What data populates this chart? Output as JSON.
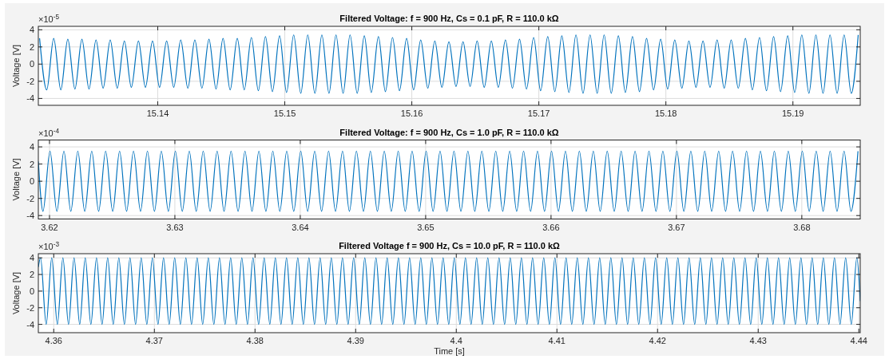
{
  "chart_data": [
    {
      "type": "line",
      "title": "Filtered Voltage: f = 900 Hz, Cs = 0.1 pF, R = 110.0 kΩ",
      "ylabel": "Voltage [V]",
      "annotations": [
        "×10$^{-5}$"
      ],
      "xlim": [
        15.1306,
        15.1953
      ],
      "ylim": [
        -4.8,
        4.4
      ],
      "xticks": [
        15.14,
        15.15,
        15.16,
        15.17,
        15.18,
        15.19
      ],
      "yticks": [
        -4,
        -2,
        0,
        2,
        4
      ],
      "grid": true,
      "x": [
        15.1307,
        15.13126,
        15.13181,
        15.13237,
        15.13292,
        15.13348,
        15.13403,
        15.13459,
        15.13514,
        15.1357,
        15.13626,
        15.13681,
        15.13737,
        15.13792,
        15.13848,
        15.13903,
        15.13959,
        15.14014,
        15.1407,
        15.14126,
        15.14181,
        15.14237,
        15.14292,
        15.14348,
        15.14403,
        15.14459,
        15.14514,
        15.1457,
        15.14626,
        15.14681,
        15.14737,
        15.14792,
        15.14848,
        15.14903,
        15.14959,
        15.15014,
        15.1507,
        15.15126,
        15.15181,
        15.15237,
        15.15292,
        15.15348,
        15.15403,
        15.15459,
        15.15514,
        15.1557,
        15.15626,
        15.15681,
        15.15737,
        15.15792,
        15.15848,
        15.15903,
        15.15959,
        15.16014,
        15.1607,
        15.16126,
        15.16181,
        15.16237,
        15.16292,
        15.16348,
        15.16403,
        15.16459,
        15.16514,
        15.1657,
        15.16626,
        15.16681,
        15.16737,
        15.16792,
        15.16848,
        15.16903,
        15.16959,
        15.17014,
        15.1707,
        15.17126,
        15.17181,
        15.17237,
        15.17292,
        15.17348,
        15.17403,
        15.17459,
        15.17514,
        15.1757,
        15.17626,
        15.17681,
        15.17737,
        15.17792,
        15.17848,
        15.17903,
        15.17959,
        15.18014,
        15.1807,
        15.18126,
        15.18181,
        15.18237,
        15.18292,
        15.18348,
        15.18403,
        15.18459,
        15.18514,
        15.1857,
        15.18626,
        15.18681,
        15.18737,
        15.18792,
        15.18848,
        15.18903,
        15.18959,
        15.19014,
        15.1907,
        15.19126,
        15.19181,
        15.19237,
        15.19292,
        15.19348,
        15.19403,
        15.19459,
        15.19514
      ],
      "series": [
        {
          "color": "#0072bd",
          "values": [
            3.0,
            -3.0,
            3.0,
            -3.0,
            2.9,
            -2.9,
            2.9,
            -2.9,
            2.8,
            -2.8,
            2.8,
            -2.8,
            2.7,
            -2.7,
            2.7,
            -2.7,
            2.7,
            -2.7,
            2.7,
            -2.7,
            2.8,
            -2.8,
            2.8,
            -2.8,
            2.9,
            -2.9,
            3.0,
            -3.0,
            3.0,
            -3.0,
            3.1,
            -3.1,
            3.2,
            -3.2,
            3.3,
            -3.3,
            3.4,
            -3.4,
            3.4,
            -3.4,
            3.4,
            -3.4,
            3.4,
            -3.4,
            3.4,
            -3.4,
            3.3,
            -3.3,
            3.2,
            -3.2,
            3.1,
            -3.1,
            3.0,
            -3.0,
            2.8,
            -2.8,
            2.7,
            -2.7,
            2.6,
            -2.6,
            2.6,
            -2.6,
            2.7,
            -2.7,
            2.7,
            -2.7,
            2.8,
            -2.8,
            2.9,
            -2.9,
            3.1,
            -3.1,
            3.2,
            -3.2,
            3.3,
            -3.3,
            3.4,
            -3.4,
            3.4,
            -3.4,
            3.4,
            -3.4,
            3.3,
            -3.3,
            3.2,
            -3.2,
            3.0,
            -3.0,
            2.9,
            -2.9,
            2.8,
            -2.8,
            2.7,
            -2.7,
            2.7,
            -2.7,
            2.8,
            -2.8,
            2.8,
            -2.8,
            3.0,
            -3.0,
            3.1,
            -3.1,
            3.2,
            -3.2,
            3.3,
            -3.3,
            3.4,
            -3.4,
            3.4,
            -3.4,
            3.4,
            -3.4,
            3.4,
            -3.4,
            3.4
          ]
        }
      ]
    },
    {
      "type": "line",
      "title": "Filtered Voltage: f = 900 Hz, Cs = 1.0 pF, R = 110.0 kΩ",
      "ylabel": "Voltage [V]",
      "annotations": [
        "×10$^{-4}$"
      ],
      "xlim": [
        3.61911,
        3.68466
      ],
      "ylim": [
        -4.4,
        4.8
      ],
      "xticks": [
        3.62,
        3.63,
        3.64,
        3.65,
        3.66,
        3.67,
        3.68
      ],
      "yticks": [
        -4,
        -2,
        0,
        2,
        4
      ],
      "grid": true,
      "x": [
        3.61911,
        3.61948,
        3.62004,
        3.62059,
        3.62115,
        3.6217,
        3.62226,
        3.62281,
        3.62337,
        3.62392,
        3.62448,
        3.62504,
        3.62559,
        3.62615,
        3.6267,
        3.62726,
        3.62781,
        3.62837,
        3.62892,
        3.62948,
        3.63004,
        3.63059,
        3.63115,
        3.6317,
        3.63226,
        3.63281,
        3.63337,
        3.63392,
        3.63448,
        3.63504,
        3.63559,
        3.63615,
        3.6367,
        3.63726,
        3.63781,
        3.63837,
        3.63892,
        3.63948,
        3.64004,
        3.64059,
        3.64115,
        3.6417,
        3.64226,
        3.64281,
        3.64337,
        3.64392,
        3.64448,
        3.64504,
        3.64559,
        3.64615,
        3.6467,
        3.64726,
        3.64781,
        3.64837,
        3.64892,
        3.64948,
        3.65004,
        3.65059,
        3.65115,
        3.6517,
        3.65226,
        3.65281,
        3.65337,
        3.65392,
        3.65448,
        3.65504,
        3.65559,
        3.65615,
        3.6567,
        3.65726,
        3.65781,
        3.65837,
        3.65892,
        3.65948,
        3.66004,
        3.66059,
        3.66115,
        3.6617,
        3.66226,
        3.66281,
        3.66337,
        3.66392,
        3.66448,
        3.66504,
        3.66559,
        3.66615,
        3.6667,
        3.66726,
        3.66781,
        3.66837,
        3.66892,
        3.66948,
        3.67004,
        3.67059,
        3.67115,
        3.6717,
        3.67226,
        3.67281,
        3.67337,
        3.67392,
        3.67448,
        3.67504,
        3.67559,
        3.67615,
        3.6767,
        3.67726,
        3.67781,
        3.67837,
        3.67892,
        3.67948,
        3.68004,
        3.68059,
        3.68115,
        3.6817,
        3.68226,
        3.68281,
        3.68337,
        3.68392,
        3.68448
      ],
      "series": [
        {
          "color": "#0072bd",
          "values": [
            2.3,
            -3.5,
            3.5,
            -3.5,
            3.5,
            -3.5,
            3.5,
            -3.5,
            3.5,
            -3.5,
            3.5,
            -3.5,
            3.5,
            -3.5,
            3.5,
            -3.5,
            3.5,
            -3.5,
            3.5,
            -3.5,
            3.5,
            -3.5,
            3.5,
            -3.5,
            3.5,
            -3.5,
            3.5,
            -3.5,
            3.5,
            -3.5,
            3.5,
            -3.5,
            3.5,
            -3.5,
            3.5,
            -3.5,
            3.5,
            -3.5,
            3.5,
            -3.5,
            3.5,
            -3.5,
            3.5,
            -3.5,
            3.5,
            -3.5,
            3.5,
            -3.5,
            3.5,
            -3.5,
            3.5,
            -3.5,
            3.5,
            -3.5,
            3.5,
            -3.5,
            3.5,
            -3.5,
            3.5,
            -3.5,
            3.5,
            -3.5,
            3.5,
            -3.5,
            3.5,
            -3.5,
            3.5,
            -3.5,
            3.5,
            -3.5,
            3.5,
            -3.5,
            3.5,
            -3.5,
            3.5,
            -3.5,
            3.5,
            -3.5,
            3.5,
            -3.5,
            3.5,
            -3.5,
            3.5,
            -3.5,
            3.5,
            -3.5,
            3.5,
            -3.5,
            3.5,
            -3.5,
            3.5,
            -3.5,
            3.5,
            -3.5,
            3.5,
            -3.5,
            3.5,
            -3.5,
            3.5,
            -3.5,
            3.5,
            -3.5,
            3.5,
            -3.5,
            3.5,
            -3.5,
            3.5,
            -3.5,
            3.5,
            -3.5,
            3.5,
            -3.5,
            3.5,
            -3.5,
            3.5,
            -3.5,
            3.5,
            -3.5,
            3.5
          ]
        }
      ]
    },
    {
      "type": "line",
      "title": "Filtered Voltage f = 900 Hz, Cs = 10.0 pF, R = 110.0 kΩ",
      "xlabel": "Time [s]",
      "ylabel": "Voltage [V]",
      "annotations": [
        "×10$^{-3}$"
      ],
      "xlim": [
        4.35847,
        4.44014
      ],
      "ylim": [
        -5,
        4.5
      ],
      "xticks": [
        4.36,
        4.37,
        4.38,
        4.39,
        4.4,
        4.41,
        4.42,
        4.43,
        4.44
      ],
      "yticks": [
        -4,
        -2,
        0,
        2,
        4
      ],
      "grid": true,
      "x": [
        4.35847,
        4.35869,
        4.35925,
        4.3598,
        4.36036,
        4.36091,
        4.36147,
        4.36202,
        4.36258,
        4.36313,
        4.36369,
        4.36425,
        4.3648,
        4.36536,
        4.36591,
        4.36647,
        4.36702,
        4.36758,
        4.36813,
        4.36869,
        4.36925,
        4.3698,
        4.37036,
        4.37091,
        4.37147,
        4.37202,
        4.37258,
        4.37313,
        4.37369,
        4.37425,
        4.3748,
        4.37536,
        4.37591,
        4.37647,
        4.37702,
        4.37758,
        4.37813,
        4.37869,
        4.37925,
        4.3798,
        4.38036,
        4.38091,
        4.38147,
        4.38202,
        4.38258,
        4.38313,
        4.38369,
        4.38425,
        4.3848,
        4.38536,
        4.38591,
        4.38647,
        4.38702,
        4.38758,
        4.38813,
        4.38869,
        4.38925,
        4.3898,
        4.39036,
        4.39091,
        4.39147,
        4.39202,
        4.39258,
        4.39313,
        4.39369,
        4.39425,
        4.3948,
        4.39536,
        4.39591,
        4.39647,
        4.39702,
        4.39758,
        4.39813,
        4.39869,
        4.39925,
        4.3998,
        4.40036,
        4.40091,
        4.40147,
        4.40202,
        4.40258,
        4.40313,
        4.40369,
        4.40425,
        4.4048,
        4.40536,
        4.40591,
        4.40647,
        4.40702,
        4.40758,
        4.40813,
        4.40869,
        4.40925,
        4.4098,
        4.41036,
        4.41091,
        4.41147,
        4.41202,
        4.41258,
        4.41313,
        4.41369,
        4.41425,
        4.4148,
        4.41536,
        4.41591,
        4.41647,
        4.41702,
        4.41758,
        4.41813,
        4.41869,
        4.41925,
        4.4198,
        4.42036,
        4.42091,
        4.42147,
        4.42202,
        4.42258,
        4.42313,
        4.42369,
        4.42425,
        4.4248,
        4.42536,
        4.42591,
        4.42647,
        4.42702,
        4.42758,
        4.42813,
        4.42869,
        4.42925,
        4.4298,
        4.43036,
        4.43091,
        4.43147,
        4.43202,
        4.43258,
        4.43313,
        4.43369,
        4.43425,
        4.4348,
        4.43536,
        4.43591,
        4.43647,
        4.43702,
        4.43758,
        4.43813,
        4.43869,
        4.43925,
        4.4398,
        4.44014
      ],
      "series": [
        {
          "color": "#0072bd",
          "values": [
            2.9,
            4,
            -4,
            4,
            -4,
            4,
            -4,
            4,
            -4,
            4,
            -4,
            4,
            -4,
            4,
            -4,
            4,
            -4,
            4,
            -4,
            4,
            -4,
            4,
            -4,
            4,
            -4,
            4,
            -4,
            4,
            -4,
            4,
            -4,
            4,
            -4,
            4,
            -4,
            4,
            -4,
            4,
            -4,
            4,
            -4,
            4,
            -4,
            4,
            -4,
            4,
            -4,
            4,
            -4,
            4,
            -4,
            4,
            -4,
            4,
            -4,
            4,
            -4,
            4,
            -4,
            4,
            -4,
            4,
            -4,
            4,
            -4,
            4,
            -4,
            4,
            -4,
            4,
            -4,
            4,
            -4,
            4,
            -4,
            4,
            -4,
            4,
            -4,
            4,
            -4,
            4,
            -4,
            4,
            -4,
            4,
            -4,
            4,
            -4,
            4,
            -4,
            4,
            -4,
            4,
            -4,
            4,
            -4,
            4,
            -4,
            4,
            -4,
            4,
            -4,
            4,
            -4,
            4,
            -4,
            4,
            -4,
            4,
            -4,
            4,
            -4,
            4,
            -4,
            4,
            -4,
            4,
            -4,
            4,
            -4,
            4,
            -4,
            4,
            -4,
            4,
            -4,
            4,
            -4,
            4,
            -4,
            4,
            -4,
            4,
            -4,
            4,
            -4,
            4,
            -4,
            4,
            -4,
            4,
            -4,
            4,
            -4,
            4,
            -4,
            4,
            -1.2
          ]
        }
      ]
    }
  ]
}
